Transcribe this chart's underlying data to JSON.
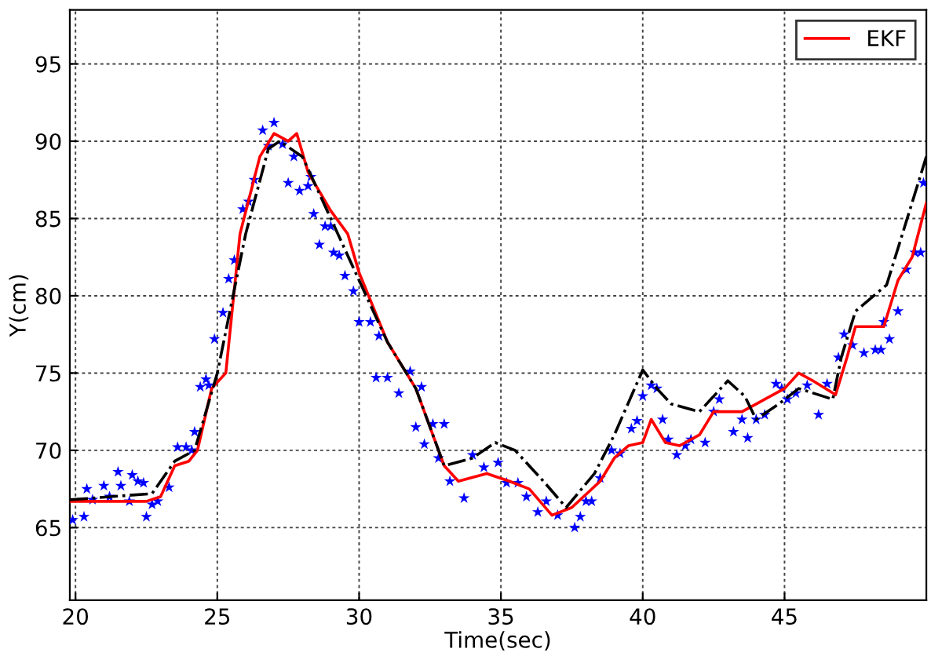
{
  "chart_data": {
    "type": "line",
    "xlabel": "Time(sec)",
    "ylabel": "Y(cm)",
    "xlim": [
      19.8,
      50
    ],
    "ylim": [
      60.3,
      98.5
    ],
    "xticks": [
      20,
      25,
      30,
      35,
      40,
      45
    ],
    "yticks": [
      65,
      70,
      75,
      80,
      85,
      90,
      95
    ],
    "grid": true,
    "legend": "top right",
    "series": [
      {
        "type": "scatter",
        "color": "#0000ff",
        "marker": "star",
        "x": [
          19.9,
          20.3,
          20.4,
          20.6,
          21,
          21.2,
          21.5,
          21.6,
          21.9,
          22,
          22.2,
          22.4,
          22.5,
          22.7,
          22.9,
          23.3,
          23.6,
          23.9,
          24.1,
          24.2,
          24.4,
          24.6,
          24.7,
          24.9,
          25.2,
          25.4,
          25.6,
          25.9,
          26.1,
          26.3,
          26.6,
          26.8,
          27,
          27.3,
          27.5,
          27.7,
          27.9,
          28.2,
          28.3,
          28.4,
          28.6,
          28.8,
          29,
          29.1,
          29.3,
          29.5,
          29.8,
          30,
          30.4,
          30.7,
          30.6,
          31,
          31.4,
          31.8,
          32,
          32.2,
          32.3,
          32.6,
          33,
          32.8,
          33.2,
          33.7,
          34,
          34.4,
          34.9,
          35.2,
          35.6,
          35.9,
          36.3,
          36.6,
          37,
          37.6,
          37.8,
          38,
          38.2,
          38.5,
          38.9,
          39.2,
          39.6,
          39.8,
          40,
          40.3,
          40.5,
          40.7,
          40.9,
          41.2,
          41.5,
          41.7,
          42.2,
          42.5,
          42.7,
          43.2,
          43.5,
          43.7,
          44,
          44.3,
          44.7,
          44.9,
          45.1,
          45.4,
          45.8,
          46.2,
          46.5,
          46.9,
          47.1,
          47.4,
          47.8,
          48.2,
          48.4,
          48.5,
          48.7,
          49,
          49.3,
          49.6,
          49.8,
          49.9
        ],
        "values": [
          65.5,
          65.7,
          67.5,
          66.8,
          67.7,
          67,
          68.6,
          67.7,
          66.7,
          68.4,
          68,
          67.9,
          65.7,
          66.5,
          66.7,
          67.6,
          70.2,
          70.2,
          70,
          71.2,
          74.1,
          74.6,
          74.2,
          77.2,
          78.9,
          81.1,
          82.3,
          85.6,
          86.1,
          87.5,
          90.7,
          89.7,
          91.2,
          89.8,
          87.3,
          89,
          86.8,
          87.1,
          87.7,
          85.3,
          83.3,
          84.5,
          84.5,
          82.8,
          82.6,
          81.3,
          80.3,
          78.3,
          78.3,
          77.4,
          74.7,
          74.7,
          73.7,
          75.1,
          71.5,
          74.1,
          70.4,
          71.7,
          71.7,
          69.5,
          68,
          66.9,
          69.7,
          68.9,
          69.2,
          67.9,
          67.9,
          67,
          66,
          66.7,
          65.8,
          65,
          65.7,
          66.7,
          66.7,
          68.2,
          70,
          69.8,
          71.4,
          71.9,
          73.5,
          74.2,
          74,
          72,
          70.7,
          69.7,
          70.3,
          70.7,
          70.5,
          72.5,
          73.3,
          71.2,
          72,
          70.8,
          72,
          72.3,
          74.3,
          74,
          73.3,
          73.7,
          74.2,
          72.3,
          74.3,
          76,
          77.5,
          76.8,
          76.3,
          76.5,
          76.5,
          78.3,
          77.2,
          79,
          81.7,
          82.8,
          82.8,
          87.3
        ]
      },
      {
        "name": "EKF",
        "color": "#ff0000",
        "line_style": "solid",
        "x": [
          19.8,
          22.5,
          23,
          23.5,
          24,
          24.3,
          24.8,
          25.3,
          25.8,
          26.5,
          27,
          27.5,
          27.8,
          28.2,
          29,
          29.6,
          30,
          31,
          32,
          33,
          33.5,
          34.5,
          35.3,
          36,
          36.8,
          37.5,
          38.5,
          39,
          39.5,
          40,
          40.3,
          40.8,
          41.3,
          42,
          42.5,
          43.5,
          44,
          45,
          45.5,
          46,
          46.8,
          47.2,
          47.5,
          48.5,
          49,
          49.5,
          50
        ],
        "values": [
          66.7,
          66.7,
          67,
          69,
          69.3,
          70,
          74,
          75,
          84,
          89,
          90.5,
          90,
          90.5,
          88,
          85.5,
          84,
          81.5,
          77,
          74,
          69,
          68,
          68.5,
          68,
          67.5,
          65.8,
          66.3,
          68,
          69.5,
          70.3,
          70.5,
          72,
          70.5,
          70.3,
          71,
          72.5,
          72.5,
          73,
          74,
          75,
          74.5,
          73.6,
          76,
          78,
          78,
          81,
          82.5,
          86
        ]
      },
      {
        "color": "#000000",
        "line_style": "dashdot",
        "x": [
          19.8,
          22.7,
          23.5,
          24.2,
          25,
          26,
          26.8,
          27.2,
          28,
          29,
          30,
          31,
          32,
          33,
          34,
          34.8,
          35.5,
          36.5,
          37.3,
          38.3,
          39,
          40,
          40.5,
          41,
          42,
          43,
          43.6,
          44,
          44.8,
          45.5,
          46.7,
          47,
          47.5,
          48.6,
          50
        ],
        "values": [
          66.8,
          67.2,
          69.3,
          70,
          75,
          84,
          89.5,
          90,
          89,
          85,
          81,
          77,
          74,
          69,
          69.5,
          70.5,
          70,
          68,
          66.3,
          68.5,
          71,
          75.2,
          74,
          73,
          72.5,
          74.5,
          73.5,
          72,
          73,
          74,
          73.3,
          76,
          79,
          80.7,
          89
        ]
      }
    ]
  }
}
